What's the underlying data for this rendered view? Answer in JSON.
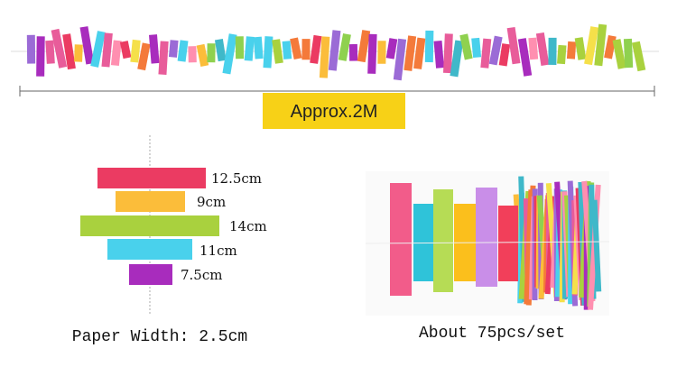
{
  "length_label": "Approx.2M",
  "strips": [
    {
      "label": "12.5cm"
    },
    {
      "label": "9cm"
    },
    {
      "label": "14cm"
    },
    {
      "label": "11cm"
    },
    {
      "label": "7.5cm"
    }
  ],
  "width_caption": "Paper Width: 2.5cm",
  "set_caption": "About 75pcs/set"
}
